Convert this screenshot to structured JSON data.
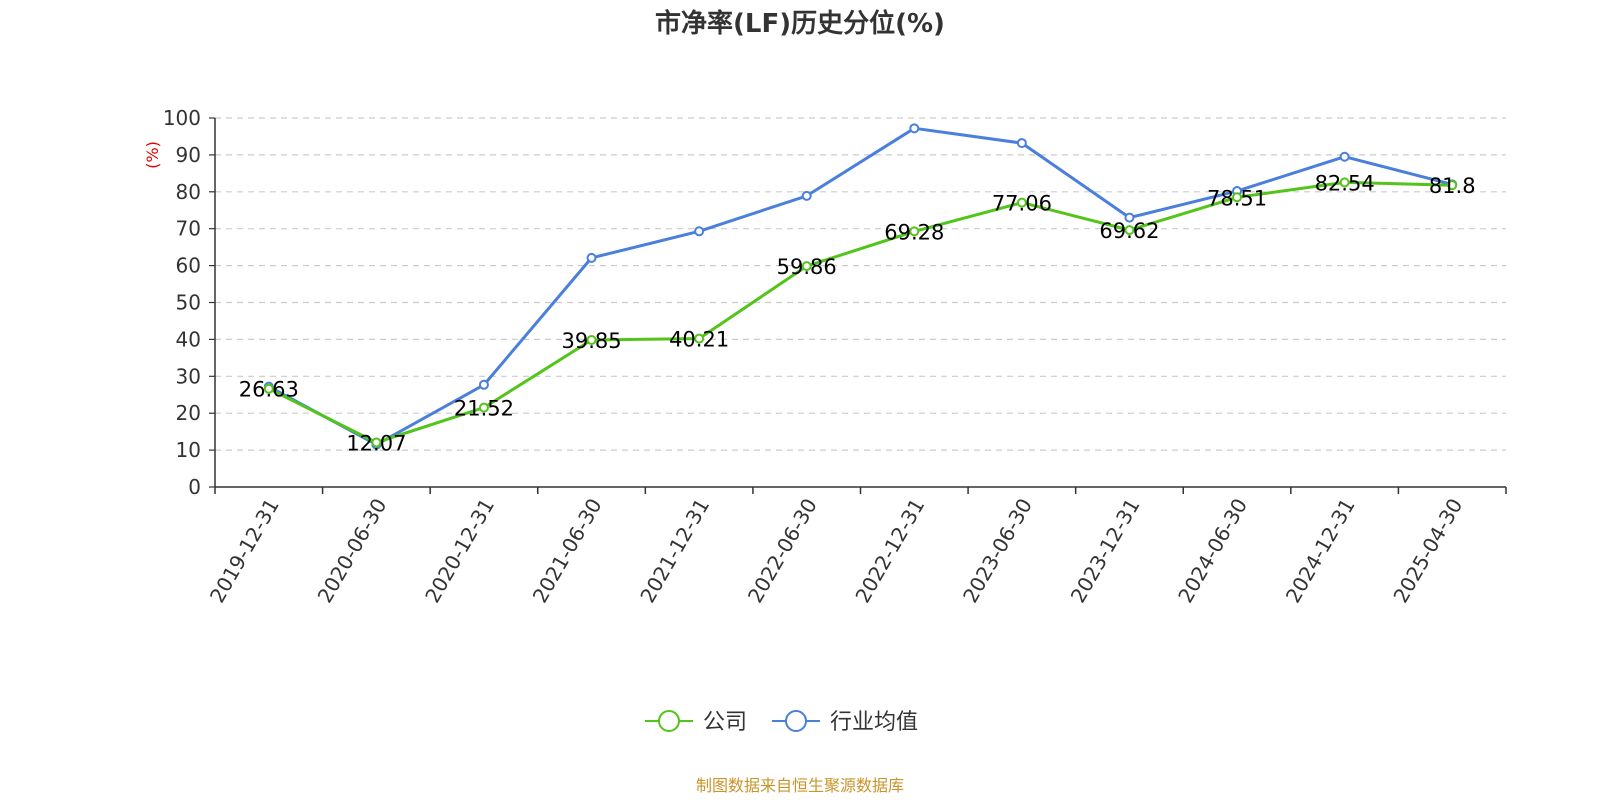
{
  "chart_data": {
    "type": "line",
    "title": "市净率(LF)历史分位(%)",
    "ylabel": "(%)",
    "ylim": [
      0,
      100
    ],
    "yticks": [
      "0",
      "10",
      "20",
      "30",
      "40",
      "50",
      "60",
      "70",
      "80",
      "90",
      "100"
    ],
    "categories": [
      "2019-12-31",
      "2020-06-30",
      "2020-12-31",
      "2021-06-30",
      "2021-12-31",
      "2022-06-30",
      "2022-12-31",
      "2023-06-30",
      "2023-12-31",
      "2024-06-30",
      "2024-12-31",
      "2025-04-30"
    ],
    "series": [
      {
        "name": "公司",
        "color": "#52c41a",
        "values": [
          26.63,
          12.07,
          21.52,
          39.85,
          40.21,
          59.86,
          69.28,
          77.06,
          69.62,
          78.51,
          82.54,
          81.8
        ],
        "labels": [
          "26.63",
          "12.07",
          "21.52",
          "39.85",
          "40.21",
          "59.86",
          "69.28",
          "77.06",
          "69.62",
          "78.51",
          "82.54",
          "81.8"
        ]
      },
      {
        "name": "行业均值",
        "color": "#4a7fdc",
        "values": [
          27.2,
          11.5,
          27.7,
          62.1,
          69.3,
          78.9,
          97.2,
          93.2,
          73.0,
          80.2,
          89.5,
          82.0
        ]
      }
    ],
    "grid": true,
    "legend_position": "bottom-center",
    "unit_color": "#e00000"
  },
  "source_text": "制图数据来自恒生聚源数据库",
  "source_color": "#c8952a"
}
